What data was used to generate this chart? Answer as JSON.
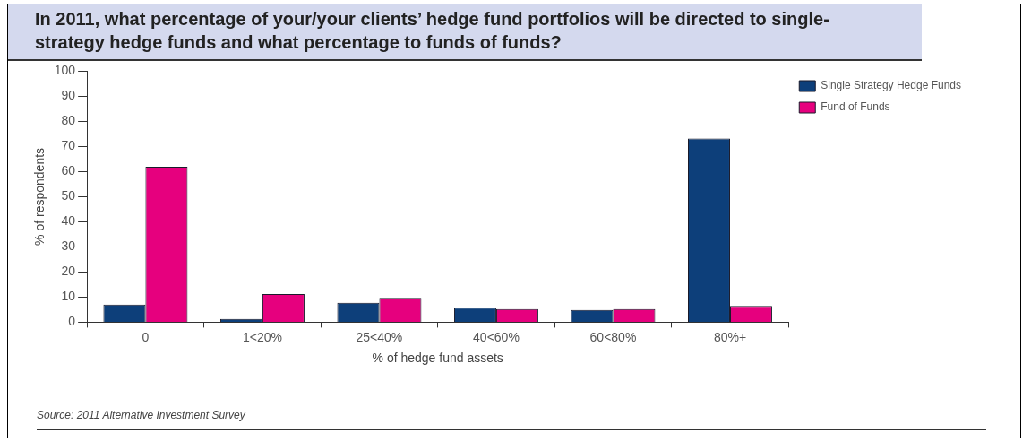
{
  "chart_data": {
    "type": "bar",
    "title": "In 2011, what percentage of your/your clients’ hedge fund portfolios will be directed to single-strategy hedge funds and what percentage to funds of funds?",
    "xlabel": "% of hedge fund assets",
    "ylabel": "% of respondents",
    "annotations": [
      "Source: 2011 Alternative Investment Survey"
    ],
    "categories": [
      "0",
      "1<20%",
      "25<40%",
      "40<60%",
      "60<80%",
      "80%+"
    ],
    "series": [
      {
        "name": "Single Strategy Hedge Funds",
        "color": "#0d3f7a",
        "values": [
          7,
          1.3,
          7.7,
          5.8,
          4.9,
          73.2
        ]
      },
      {
        "name": "Fund of Funds",
        "color": "#e6007e",
        "values": [
          61.9,
          11.2,
          9.7,
          5.2,
          5.2,
          6.5
        ]
      }
    ],
    "ylim": [
      0,
      100
    ],
    "yticks": [
      0,
      10,
      20,
      30,
      40,
      50,
      60,
      70,
      80,
      90,
      100
    ],
    "grid": false,
    "legend": "right"
  }
}
